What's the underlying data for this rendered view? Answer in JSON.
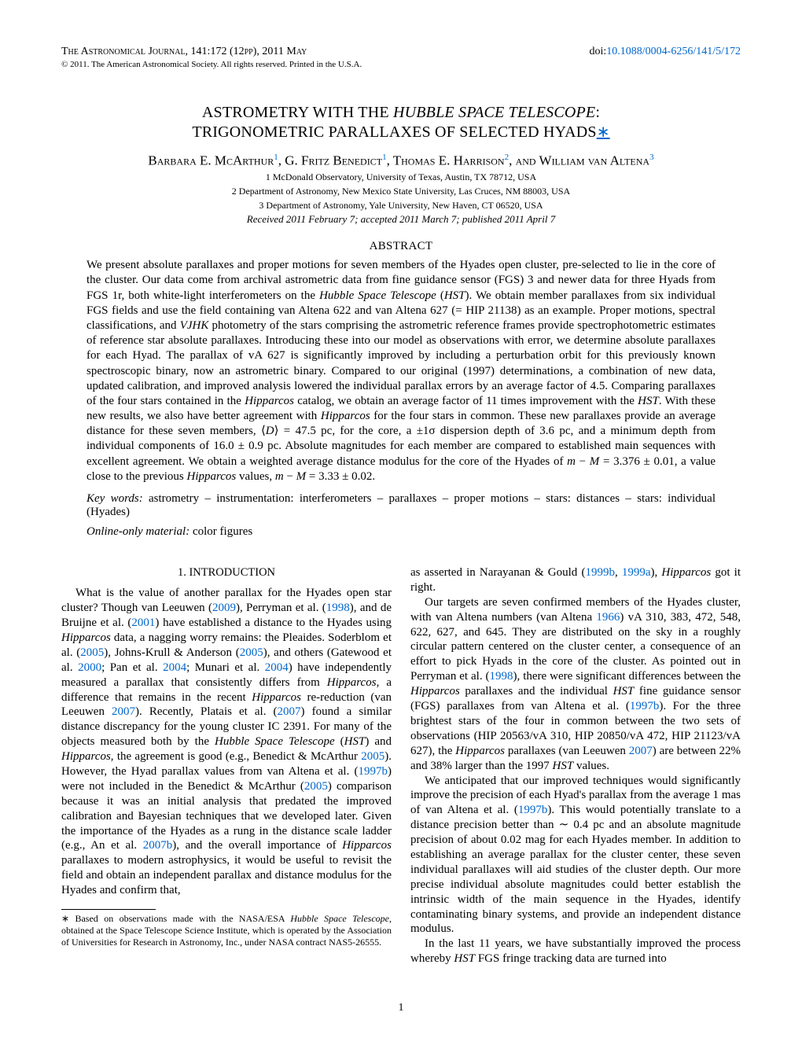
{
  "header": {
    "journal_line": "The Astronomical Journal, 141:172 (12pp), 2011 May",
    "doi_label": "doi:",
    "doi_link": "10.1088/0004-6256/141/5/172",
    "copyright": "© 2011. The American Astronomical Society. All rights reserved. Printed in the U.S.A."
  },
  "title": {
    "line1_pre": "ASTROMETRY WITH THE ",
    "line1_it": "HUBBLE SPACE TELESCOPE",
    "line1_post": ":",
    "line2": "TRIGONOMETRIC PARALLAXES OF SELECTED HYADS",
    "star": "∗"
  },
  "authors_html": "Barbara E. McArthur<sup>1</sup>, G. Fritz Benedict<sup>1</sup>, Thomas E. Harrison<sup>2</sup>, and William van Altena<sup>3</sup>",
  "affiliations": [
    "1 McDonald Observatory, University of Texas, Austin, TX 78712, USA",
    "2 Department of Astronomy, New Mexico State University, Las Cruces, NM 88003, USA",
    "3 Department of Astronomy, Yale University, New Haven, CT 06520, USA"
  ],
  "dates": "Received 2011 February 7; accepted 2011 March 7; published 2011 April 7",
  "abstract": {
    "heading": "ABSTRACT",
    "body_html": "We present absolute parallaxes and proper motions for seven members of the Hyades open cluster, pre-selected to lie in the core of the cluster. Our data come from archival astrometric data from fine guidance sensor (FGS) 3 and newer data for three Hyads from FGS 1r, both white-light interferometers on the <span class=\"it\">Hubble Space Telescope</span> (<span class=\"it\">HST</span>). We obtain member parallaxes from six individual FGS fields and use the field containing van Altena 622 and van Altena 627 (= HIP 21138) as an example. Proper motions, spectral classifications, and <span class=\"it\">VJHK</span> photometry of the stars comprising the astrometric reference frames provide spectrophotometric estimates of reference star absolute parallaxes. Introducing these into our model as observations with error, we determine absolute parallaxes for each Hyad. The parallax of vA 627 is significantly improved by including a perturbation orbit for this previously known spectroscopic binary, now an astrometric binary. Compared to our original (1997) determinations, a combination of new data, updated calibration, and improved analysis lowered the individual parallax errors by an average factor of 4.5. Comparing parallaxes of the four stars contained in the <span class=\"it\">Hipparcos</span> catalog, we obtain an average factor of 11 times improvement with the <span class=\"it\">HST</span>. With these new results, we also have better agreement with <span class=\"it\">Hipparcos</span> for the four stars in common. These new parallaxes provide an average distance for these seven members, ⟨<span class=\"it\">D</span>⟩ = 47.5 pc, for the core, a ±1σ dispersion depth of 3.6 pc, and a minimum depth from individual components of 16.0 ± 0.9 pc. Absolute magnitudes for each member are compared to established main sequences with excellent agreement. We obtain a weighted average distance modulus for the core of the Hyades of <span class=\"it\">m</span> − <span class=\"it\">M</span> = 3.376 ± 0.01, a value close to the previous <span class=\"it\">Hipparcos</span> values, <span class=\"it\">m</span> − <span class=\"it\">M</span> = 3.33 ± 0.02."
  },
  "keywords": {
    "label": "Key words:",
    "text": " astrometry – instrumentation: interferometers – parallaxes – proper motions – stars: distances – stars: individual (Hyades)"
  },
  "online_only": {
    "label": "Online-only material:",
    "text": " color figures"
  },
  "section1": {
    "heading": "1. INTRODUCTION",
    "left_html": "What is the value of another parallax for the Hyades open star cluster? Though van Leeuwen (<a href=\"#\">2009</a>), Perryman et al. (<a href=\"#\">1998</a>), and de Bruijne et al. (<a href=\"#\">2001</a>) have established a distance to the Hyades using <span class=\"it\">Hipparcos</span> data, a nagging worry remains: the Pleaides. Soderblom et al. (<a href=\"#\">2005</a>), Johns-Krull & Anderson (<a href=\"#\">2005</a>), and others (Gatewood et al. <a href=\"#\">2000</a>; Pan et al. <a href=\"#\">2004</a>; Munari et al. <a href=\"#\">2004</a>) have independently measured a parallax that consistently differs from <span class=\"it\">Hipparcos</span>, a difference that remains in the recent <span class=\"it\">Hipparcos</span> re-reduction (van Leeuwen <a href=\"#\">2007</a>). Recently, Platais et al. (<a href=\"#\">2007</a>) found a similar distance discrepancy for the young cluster IC 2391. For many of the objects measured both by the <span class=\"it\">Hubble Space Telescope</span> (<span class=\"it\">HST</span>) and <span class=\"it\">Hipparcos</span>, the agreement is good (e.g., Benedict & McArthur <a href=\"#\">2005</a>). However, the Hyad parallax values from van Altena et al. (<a href=\"#\">1997b</a>) were not included in the Benedict & McArthur (<a href=\"#\">2005</a>) comparison because it was an initial analysis that predated the improved calibration and Bayesian techniques that we developed later. Given the importance of the Hyades as a rung in the distance scale ladder (e.g., An et al. <a href=\"#\">2007b</a>), and the overall importance of <span class=\"it\">Hipparcos</span> parallaxes to modern astrophysics, it would be useful to revisit the field and obtain an independent parallax and distance modulus for the Hyades and confirm that,",
    "right_p1_html": "as asserted in Narayanan & Gould (<a href=\"#\">1999b</a>, <a href=\"#\">1999a</a>), <span class=\"it\">Hipparcos</span> got it right.",
    "right_p2_html": "Our targets are seven confirmed members of the Hyades cluster, with van Altena numbers (van Altena <a href=\"#\">1966</a>) vA 310, 383, 472, 548, 622, 627, and 645. They are distributed on the sky in a roughly circular pattern centered on the cluster center, a consequence of an effort to pick Hyads in the core of the cluster. As pointed out in Perryman et al. (<a href=\"#\">1998</a>), there were significant differences between the <span class=\"it\">Hipparcos</span> parallaxes and the individual <span class=\"it\">HST</span> fine guidance sensor (FGS) parallaxes from van Altena et al. (<a href=\"#\">1997b</a>). For the three brightest stars of the four in common between the two sets of observations (HIP 20563/vA 310, HIP 20850/vA 472, HIP 21123/vA 627), the <span class=\"it\">Hipparcos</span> parallaxes (van Leeuwen <a href=\"#\">2007</a>) are between 22% and 38% larger than the 1997 <span class=\"it\">HST</span> values.",
    "right_p3_html": "We anticipated that our improved techniques would significantly improve the precision of each Hyad's parallax from the average 1 mas of van Altena et al. (<a href=\"#\">1997b</a>). This would potentially translate to a distance precision better than ∼ 0.4 pc and an absolute magnitude precision of about 0.02 mag for each Hyades member. In addition to establishing an average parallax for the cluster center, these seven individual parallaxes will aid studies of the cluster depth. Our more precise individual absolute magnitudes could better establish the intrinsic width of the main sequence in the Hyades, identify contaminating binary systems, and provide an independent distance modulus.",
    "right_p4_html": "In the last 11 years, we have substantially improved the process whereby <span class=\"it\">HST</span> FGS fringe tracking data are turned into"
  },
  "footnote_html": "∗ Based on observations made with the NASA/ESA <span class=\"it\">Hubble Space Telescope</span>, obtained at the Space Telescope Science Institute, which is operated by the Association of Universities for Research in Astronomy, Inc., under NASA contract NAS5-26555.",
  "page_number": "1",
  "colors": {
    "link": "#0066cc",
    "text": "#000000",
    "background": "#ffffff"
  },
  "typography": {
    "body_font": "Times New Roman",
    "body_size_pt": 15,
    "title_size_pt": 20,
    "authors_size_pt": 17,
    "affil_size_pt": 12,
    "footnote_size_pt": 12,
    "header_size_pt": 14
  }
}
